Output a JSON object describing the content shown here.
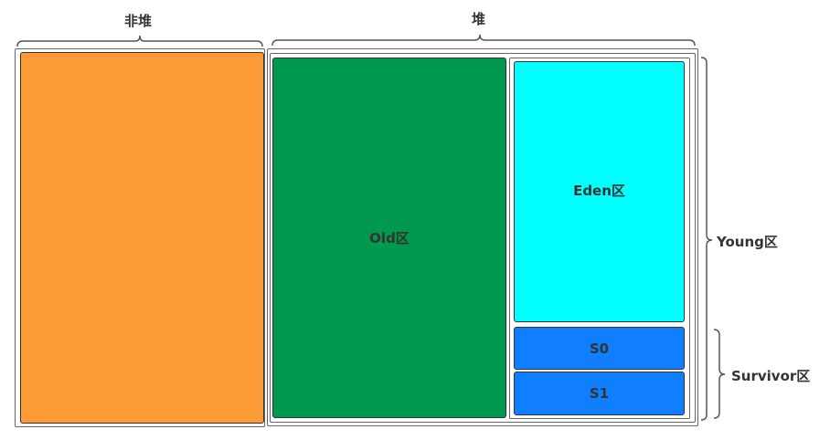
{
  "labels": {
    "non_heap": "非堆",
    "heap": "堆",
    "old": "Old区",
    "eden": "Eden区",
    "s0": "S0",
    "s1": "S1",
    "young": "Young区",
    "survivor": "Survivor区"
  },
  "colors": {
    "non_heap": "#FC9A35",
    "old": "#00994D",
    "eden": "#00FFFF",
    "survivor": "#0F7FFF"
  }
}
